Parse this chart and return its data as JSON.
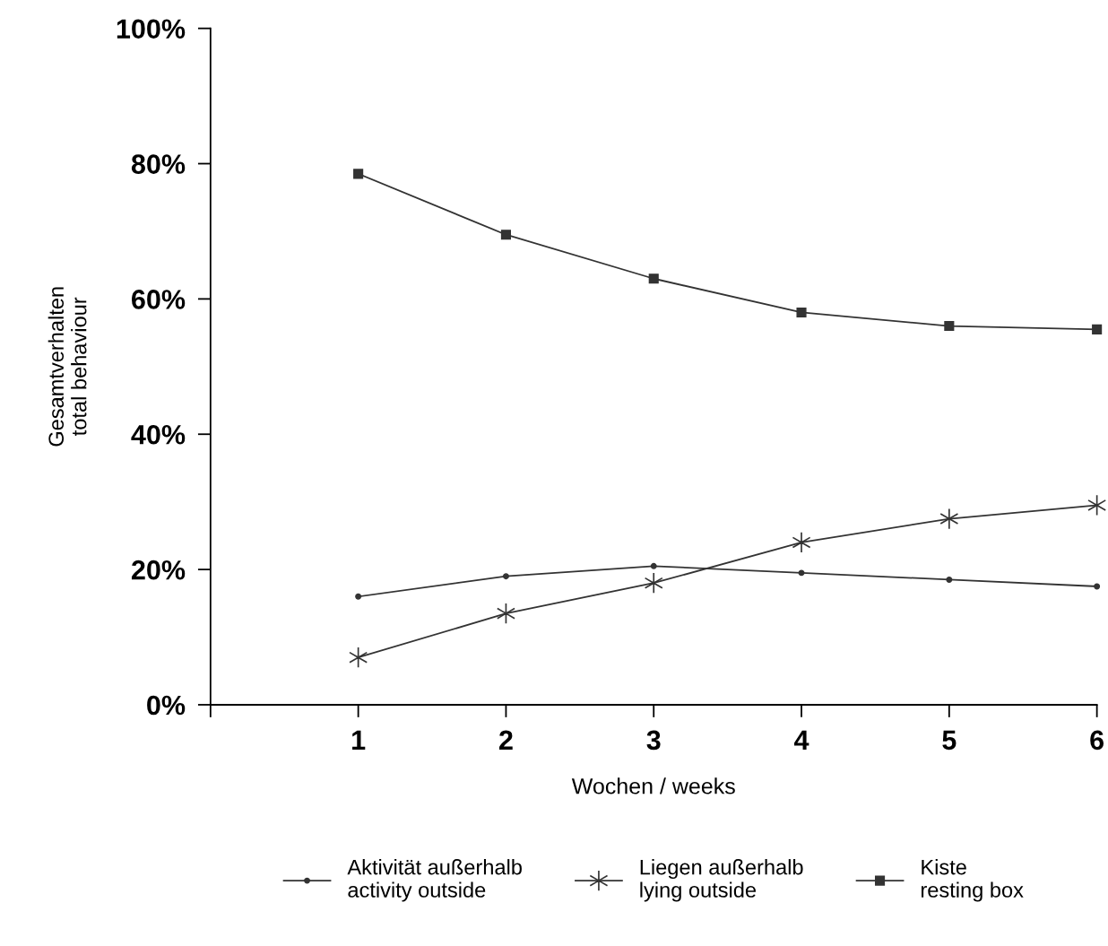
{
  "chart_data": {
    "type": "line",
    "xlabel": "Wochen / weeks",
    "ylabel": "Gesamtverhalten\ntotal behaviour",
    "x": [
      1,
      2,
      3,
      4,
      5,
      6
    ],
    "xlim": [
      0,
      6
    ],
    "xticks": [
      {
        "value": 0,
        "label": null
      },
      1,
      2,
      3,
      4,
      5,
      6
    ],
    "ylim": [
      0,
      100
    ],
    "yticks": [
      {
        "value": 0,
        "label": "0%"
      },
      {
        "value": 20,
        "label": "20%"
      },
      {
        "value": 40,
        "label": "40%"
      },
      {
        "value": 60,
        "label": "60%"
      },
      {
        "value": 80,
        "label": "80%"
      },
      {
        "value": 100,
        "label": "100%"
      }
    ],
    "grid": false,
    "legend": "bottom",
    "line_style": "solid",
    "series": [
      {
        "name": "Aktivität außerhalb\nactivity outside",
        "color": "#333333",
        "marker": "circle",
        "values": [
          16,
          19,
          20.5,
          19.5,
          18.5,
          17.5
        ]
      },
      {
        "name": "Liegen außerhalb\nlying outside",
        "color": "#333333",
        "marker": "cross",
        "values": [
          7,
          13.5,
          18,
          24,
          27.5,
          29.5
        ]
      },
      {
        "name": "Kiste\nresting box",
        "color": "#333333",
        "marker": "square",
        "values": [
          78.5,
          69.5,
          63,
          58,
          56,
          55.5
        ]
      }
    ]
  }
}
